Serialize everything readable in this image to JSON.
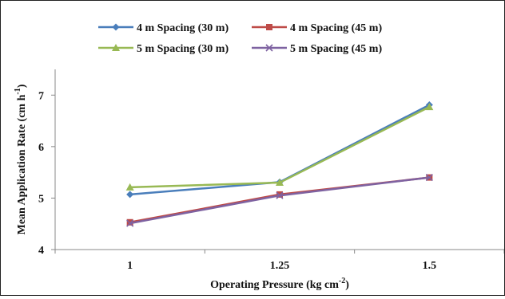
{
  "chart_data": {
    "type": "line",
    "title": "",
    "xlabel": "Operating Pressure (kg cm",
    "xlabel_sup": "-2",
    "xlabel_end": ")",
    "ylabel": "Mean Application Rate (cm h",
    "ylabel_sup": "-1",
    "ylabel_end": ")",
    "categories": [
      "1",
      "1.25",
      "1.5"
    ],
    "ylim": [
      4,
      7.5
    ],
    "yticks": [
      "4",
      "5",
      "6",
      "7"
    ],
    "grid": false,
    "legend_position": "top",
    "series": [
      {
        "name": "4 m Spacing (30 m)",
        "values": [
          5.07,
          5.31,
          6.81
        ],
        "color": "#4a7ebb",
        "marker": "diamond"
      },
      {
        "name": "4 m Spacing (45 m)",
        "values": [
          4.53,
          5.07,
          5.4
        ],
        "color": "#be4b48",
        "marker": "square"
      },
      {
        "name": "5 m Spacing (30 m)",
        "values": [
          5.21,
          5.3,
          6.77
        ],
        "color": "#98b954",
        "marker": "triangle"
      },
      {
        "name": "5 m Spacing (45 m)",
        "values": [
          4.51,
          5.05,
          5.4
        ],
        "color": "#7e62a1",
        "marker": "x"
      }
    ]
  }
}
